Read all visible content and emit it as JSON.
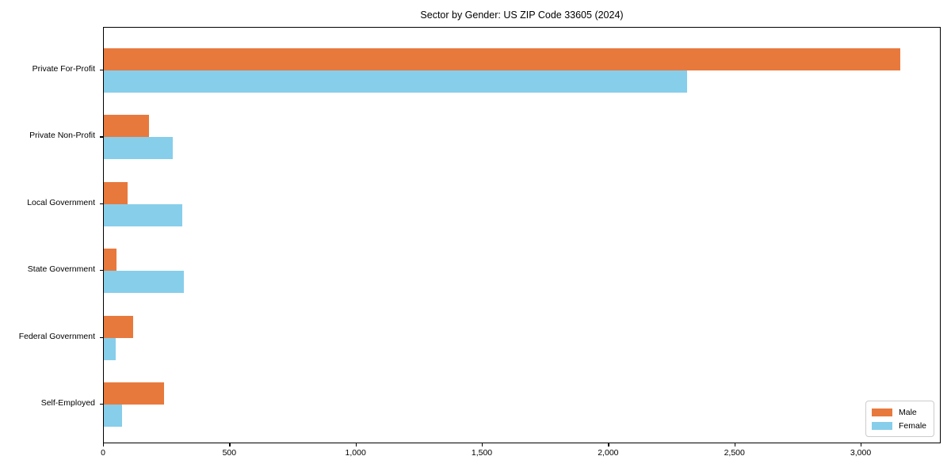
{
  "title": "Sector by Gender: US ZIP Code 33605 (2024)",
  "colors": {
    "male_bar": "#E8793D",
    "female_bar": "#87CEEB",
    "spine": "#000000",
    "legend_border": "#CCCCCC",
    "background": "#FFFFFF",
    "text": "#000000"
  },
  "chart_data": {
    "type": "bar",
    "orientation": "horizontal",
    "title": "Sector by Gender: US ZIP Code 33605 (2024)",
    "xlabel": "",
    "ylabel": "",
    "categories": [
      "Private For-Profit",
      "Private Non-Profit",
      "Local Government",
      "State Government",
      "Federal Government",
      "Self-Employed"
    ],
    "series": [
      {
        "name": "Male",
        "color": "#E8793D",
        "values": [
          3155,
          180,
          95,
          50,
          117,
          240
        ]
      },
      {
        "name": "Female",
        "color": "#87CEEB",
        "values": [
          2310,
          272,
          310,
          316,
          47,
          73
        ]
      }
    ],
    "xlim": [
      0,
      3313
    ],
    "xticks": [
      0,
      500,
      1000,
      1500,
      2000,
      2500,
      3000
    ],
    "xtick_labels": [
      "0",
      "500",
      "1,000",
      "1,500",
      "2,000",
      "2,500",
      "3,000"
    ],
    "grid": false,
    "legend_position": "lower right"
  },
  "legend": {
    "items": [
      {
        "label": "Male"
      },
      {
        "label": "Female"
      }
    ]
  }
}
